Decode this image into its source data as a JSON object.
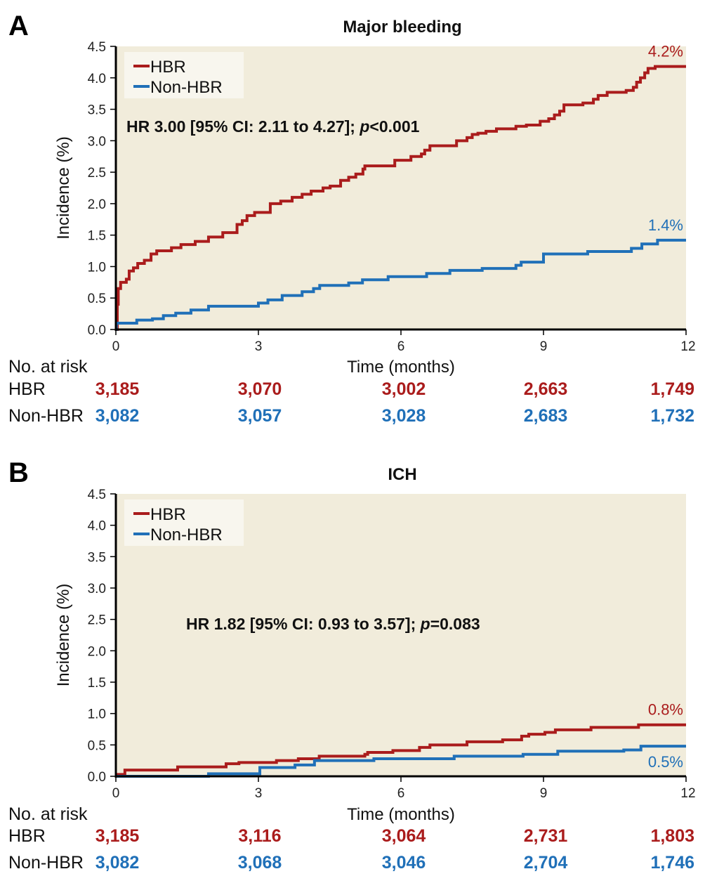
{
  "colors": {
    "hbr": "#aa1c1c",
    "non_hbr": "#2070b8",
    "plot_bg": "#f1ecdb",
    "legend_bg": "#f8f6ee",
    "axis": "#000000"
  },
  "chart_data": [
    {
      "type": "line",
      "step": true,
      "panel_letter": "A",
      "title": "Major bleeding",
      "xlabel": "Time (months)",
      "ylabel": "Incidence (%)",
      "xlim": [
        0,
        12
      ],
      "ylim": [
        0,
        4.5
      ],
      "x_ticks": [
        0,
        3,
        6,
        9,
        12
      ],
      "x_tick_labels": [
        "0",
        "3",
        "6",
        "9",
        "12"
      ],
      "y_ticks": [
        0,
        0.5,
        1,
        1.5,
        2,
        2.5,
        3,
        3.5,
        4,
        4.5
      ],
      "y_tick_labels": [
        "0.0",
        "0.5",
        "1.0",
        "1.5",
        "2.0",
        "2.5",
        "3.0",
        "3.5",
        "4.0",
        "4.5"
      ],
      "grid": false,
      "legend": {
        "position": "top-left",
        "entries": [
          "HBR",
          "Non-HBR"
        ]
      },
      "annotation": {
        "prefix": "HR 3.00 [95% CI: 2.11 to 4.27]; ",
        "p_symbol": "p",
        "p_value": "<0.001"
      },
      "series": [
        {
          "name": "HBR",
          "color_key": "hbr",
          "end_label": "4.2%",
          "x": [
            0,
            0.03,
            0.05,
            0.1,
            0.22,
            0.28,
            0.37,
            0.46,
            0.6,
            0.74,
            0.86,
            1.17,
            1.37,
            1.67,
            1.95,
            2.25,
            2.55,
            2.66,
            2.76,
            2.92,
            3.25,
            3.47,
            3.71,
            3.92,
            4.11,
            4.36,
            4.51,
            4.73,
            4.9,
            5.05,
            5.2,
            5.24,
            5.87,
            6.21,
            6.43,
            6.5,
            6.61,
            6.69,
            7.17,
            7.39,
            7.5,
            7.62,
            7.79,
            8.01,
            8.42,
            8.64,
            8.93,
            9.11,
            9.23,
            9.34,
            9.43,
            9.5,
            9.83,
            10.05,
            10.15,
            10.34,
            10.74,
            10.89,
            10.96,
            11.04,
            11.13,
            11.2,
            11.35,
            12
          ],
          "y": [
            0,
            0.4,
            0.65,
            0.75,
            0.8,
            0.93,
            0.98,
            1.05,
            1.1,
            1.2,
            1.25,
            1.3,
            1.35,
            1.4,
            1.47,
            1.54,
            1.67,
            1.73,
            1.81,
            1.86,
            2.0,
            2.04,
            2.1,
            2.15,
            2.2,
            2.25,
            2.28,
            2.37,
            2.42,
            2.47,
            2.55,
            2.6,
            2.69,
            2.75,
            2.79,
            2.85,
            2.92,
            2.92,
            3.0,
            3.05,
            3.1,
            3.12,
            3.15,
            3.19,
            3.23,
            3.25,
            3.31,
            3.35,
            3.41,
            3.47,
            3.57,
            3.57,
            3.6,
            3.66,
            3.72,
            3.77,
            3.8,
            3.85,
            3.93,
            4.0,
            4.08,
            4.15,
            4.18,
            4.18
          ]
        },
        {
          "name": "Non-HBR",
          "color_key": "non_hbr",
          "end_label": "1.4%",
          "x": [
            0,
            0.01,
            0.44,
            0.77,
            1.0,
            1.26,
            1.58,
            1.95,
            3.0,
            3.2,
            3.5,
            3.92,
            4.16,
            4.29,
            4.9,
            5.19,
            5.73,
            6.54,
            7.03,
            7.71,
            8.42,
            8.53,
            9.0,
            9.93,
            10.42,
            10.85,
            11.07,
            11.4,
            12
          ],
          "y": [
            0,
            0.1,
            0.15,
            0.17,
            0.22,
            0.26,
            0.31,
            0.37,
            0.42,
            0.47,
            0.54,
            0.6,
            0.65,
            0.7,
            0.74,
            0.79,
            0.84,
            0.89,
            0.94,
            0.97,
            1.02,
            1.07,
            1.2,
            1.24,
            1.24,
            1.29,
            1.36,
            1.42,
            1.42
          ]
        }
      ],
      "risk_table": {
        "header": "No. at risk",
        "times": [
          0,
          3,
          6,
          9,
          12
        ],
        "rows": [
          {
            "label": "HBR",
            "color_key": "hbr",
            "values": [
              "3,185",
              "3,070",
              "3,002",
              "2,663",
              "1,749"
            ]
          },
          {
            "label": "Non-HBR",
            "color_key": "non_hbr",
            "values": [
              "3,082",
              "3,057",
              "3,028",
              "2,683",
              "1,732"
            ]
          }
        ]
      }
    },
    {
      "type": "line",
      "step": true,
      "panel_letter": "B",
      "title": "ICH",
      "xlabel": "Time (months)",
      "ylabel": "Incidence (%)",
      "xlim": [
        0,
        12
      ],
      "ylim": [
        0,
        4.5
      ],
      "x_ticks": [
        0,
        3,
        6,
        9,
        12
      ],
      "x_tick_labels": [
        "0",
        "3",
        "6",
        "9",
        "12"
      ],
      "y_ticks": [
        0,
        0.5,
        1,
        1.5,
        2,
        2.5,
        3,
        3.5,
        4,
        4.5
      ],
      "y_tick_labels": [
        "0.0",
        "0.5",
        "1.0",
        "1.5",
        "2.0",
        "2.5",
        "3.0",
        "3.5",
        "4.0",
        "4.5"
      ],
      "grid": false,
      "legend": {
        "position": "top-left",
        "entries": [
          "HBR",
          "Non-HBR"
        ]
      },
      "annotation": {
        "prefix": "HR 1.82 [95% CI: 0.93 to 3.57]; ",
        "p_symbol": "p",
        "p_value": "=0.083"
      },
      "series": [
        {
          "name": "HBR",
          "color_key": "hbr",
          "end_label": "0.8%",
          "x": [
            0,
            0.19,
            1.3,
            2.32,
            2.59,
            3.38,
            3.84,
            4.28,
            5.24,
            5.3,
            5.83,
            6.39,
            6.61,
            7.39,
            8.14,
            8.54,
            8.69,
            9.03,
            9.25,
            10.0,
            11.0,
            12
          ],
          "y": [
            0.03,
            0.1,
            0.15,
            0.2,
            0.22,
            0.25,
            0.28,
            0.32,
            0.35,
            0.38,
            0.41,
            0.46,
            0.5,
            0.55,
            0.58,
            0.64,
            0.67,
            0.7,
            0.74,
            0.78,
            0.82,
            0.82
          ],
          "x_note": "months",
          "end_value": 0.8
        },
        {
          "name": "Non-HBR",
          "color_key": "non_hbr",
          "end_label": "0.5%",
          "x": [
            0,
            1.95,
            3.03,
            3.77,
            4.18,
            5.43,
            7.12,
            8.57,
            9.3,
            10.69,
            11.05,
            12
          ],
          "y": [
            0,
            0.04,
            0.14,
            0.18,
            0.25,
            0.28,
            0.32,
            0.35,
            0.4,
            0.42,
            0.48,
            0.48
          ],
          "end_value": 0.5
        }
      ],
      "risk_table": {
        "header": "No. at risk",
        "times": [
          0,
          3,
          6,
          9,
          12
        ],
        "rows": [
          {
            "label": "HBR",
            "color_key": "hbr",
            "values": [
              "3,185",
              "3,116",
              "3,064",
              "2,731",
              "1,803"
            ]
          },
          {
            "label": "Non-HBR",
            "color_key": "non_hbr",
            "values": [
              "3,082",
              "3,068",
              "3,046",
              "2,704",
              "1,746"
            ]
          }
        ]
      }
    }
  ]
}
